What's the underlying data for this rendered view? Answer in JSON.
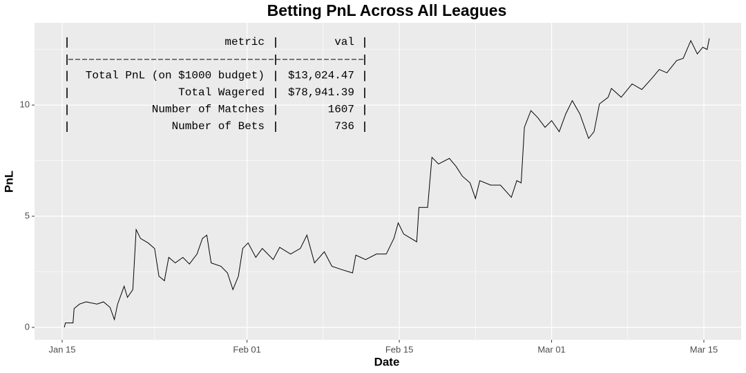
{
  "chart_data": {
    "type": "line",
    "title": "Betting PnL Across All Leagues",
    "x_label": "Date",
    "y_label": "PnL",
    "color": "#000000",
    "grid": true,
    "xlim": [
      12.46,
      77.43
    ],
    "xticks": [
      {
        "value": 15,
        "label": "Jan 15"
      },
      {
        "value": 32,
        "label": "Feb 01"
      },
      {
        "value": 46,
        "label": "Feb 15"
      },
      {
        "value": 60,
        "label": "Mar 01"
      },
      {
        "value": 74,
        "label": "Mar 15"
      }
    ],
    "ylim": [
      -0.56,
      13.7
    ],
    "yticks": [
      0,
      5,
      10
    ],
    "x": [
      15.2,
      15.3,
      16.0,
      16.1,
      16.6,
      17.2,
      18.2,
      18.8,
      19.4,
      19.8,
      20.1,
      20.7,
      21.0,
      21.5,
      21.8,
      22.2,
      22.9,
      23.5,
      23.9,
      24.4,
      24.8,
      25.4,
      26.1,
      26.7,
      27.4,
      27.9,
      28.3,
      28.7,
      29.6,
      30.2,
      30.7,
      31.2,
      31.6,
      32.1,
      32.8,
      33.4,
      34.4,
      35.0,
      36.0,
      36.9,
      37.5,
      38.2,
      39.1,
      39.8,
      40.7,
      41.7,
      42.0,
      42.9,
      43.9,
      44.8,
      45.5,
      45.9,
      46.4,
      47.6,
      47.8,
      48.6,
      49.0,
      49.6,
      50.6,
      51.2,
      51.8,
      52.5,
      53.0,
      53.4,
      54.4,
      55.3,
      56.3,
      56.8,
      57.2,
      57.5,
      58.1,
      58.7,
      59.4,
      60.0,
      60.7,
      61.3,
      61.9,
      62.6,
      63.4,
      63.9,
      64.4,
      65.2,
      65.5,
      66.4,
      67.4,
      68.3,
      69.3,
      69.9,
      70.6,
      71.5,
      72.1,
      72.8,
      73.4,
      73.9,
      74.3,
      74.5
    ],
    "values": [
      0.0,
      0.2,
      0.2,
      0.85,
      1.05,
      1.15,
      1.05,
      1.15,
      0.9,
      0.35,
      1.05,
      1.85,
      1.35,
      1.7,
      4.4,
      4.0,
      3.8,
      3.55,
      2.3,
      2.1,
      3.15,
      2.9,
      3.15,
      2.85,
      3.3,
      4.0,
      4.15,
      2.9,
      2.75,
      2.45,
      1.7,
      2.3,
      3.55,
      3.8,
      3.15,
      3.55,
      3.05,
      3.6,
      3.3,
      3.55,
      4.15,
      2.9,
      3.4,
      2.75,
      2.6,
      2.45,
      3.25,
      3.05,
      3.3,
      3.3,
      4.0,
      4.7,
      4.2,
      3.85,
      5.4,
      5.4,
      7.65,
      7.35,
      7.6,
      7.25,
      6.8,
      6.5,
      5.8,
      6.6,
      6.4,
      6.4,
      5.85,
      6.6,
      6.5,
      9.0,
      9.75,
      9.45,
      9.0,
      9.3,
      8.8,
      9.6,
      10.2,
      9.6,
      8.5,
      8.8,
      10.05,
      10.35,
      10.75,
      10.35,
      10.95,
      10.7,
      11.25,
      11.6,
      11.45,
      12.0,
      12.1,
      12.9,
      12.3,
      12.6,
      12.5,
      13.0
    ],
    "annotation_table": {
      "columns": [
        "metric",
        "val"
      ],
      "rows": [
        [
          "Total PnL (on $1000 budget)",
          "$13,024.47"
        ],
        [
          "Total Wagered",
          "$78,941.39"
        ],
        [
          "Number of Matches",
          "1607"
        ],
        [
          "Number of Bets",
          "736"
        ]
      ]
    }
  }
}
